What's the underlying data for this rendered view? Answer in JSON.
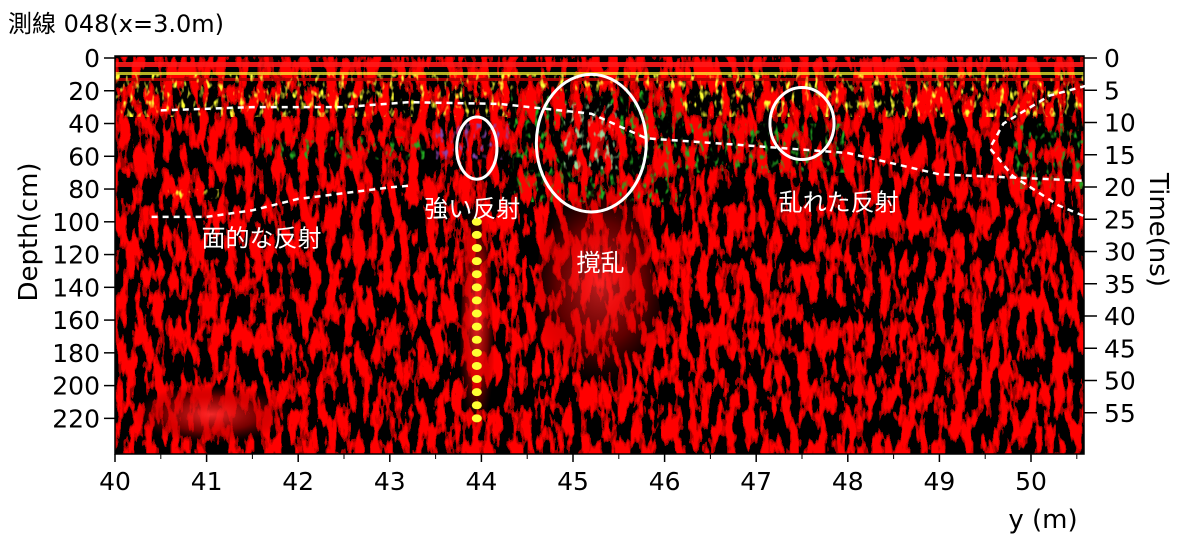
{
  "chart_data": {
    "type": "heatmap",
    "title": "測線 048(x=3.0m)",
    "xlabel": "y (m)",
    "ylabel": "Depth(cm)",
    "y2label": "Time(ns)",
    "xlim": [
      40,
      50.6
    ],
    "ylim": [
      0,
      235
    ],
    "y2lim": [
      0,
      59
    ],
    "x_ticks": [
      "40",
      "41",
      "42",
      "43",
      "44",
      "45",
      "46",
      "47",
      "48",
      "49",
      "50"
    ],
    "depth_ticks": [
      "0",
      "20",
      "40",
      "60",
      "80",
      "100",
      "120",
      "140",
      "160",
      "180",
      "200",
      "220"
    ],
    "time_ticks": [
      "0",
      "5",
      "10",
      "15",
      "20",
      "25",
      "30",
      "35",
      "40",
      "45",
      "50",
      "55"
    ],
    "colormap": [
      "#000000",
      "#5a0000",
      "#b00000",
      "#ff1a1a",
      "#ffaa00",
      "#ffff33",
      "#22aa22",
      "#2233cc",
      "#8844aa",
      "#ffffff"
    ],
    "annotations": [
      {
        "text": "面的な反射",
        "x": 41.6,
        "depth": 115
      },
      {
        "text": "強い反射",
        "x": 43.9,
        "depth": 97
      },
      {
        "text": "撹乱",
        "x": 45.3,
        "depth": 130
      },
      {
        "text": "乱れた反射",
        "x": 47.9,
        "depth": 93
      }
    ],
    "circles": [
      {
        "x": 43.95,
        "depth": 55,
        "rx": 0.22,
        "rdepth": 19
      },
      {
        "x": 45.2,
        "depth": 52,
        "rx": 0.6,
        "rdepth": 42
      },
      {
        "x": 47.5,
        "depth": 40,
        "rx": 0.35,
        "rdepth": 22
      }
    ],
    "dashed_lines": [
      [
        [
          40.5,
          32
        ],
        [
          41.5,
          30
        ],
        [
          42.5,
          30
        ],
        [
          43.2,
          27
        ],
        [
          44.2,
          28
        ],
        [
          45.2,
          34
        ],
        [
          45.8,
          49
        ],
        [
          46.8,
          53
        ],
        [
          48.0,
          58
        ],
        [
          49.0,
          71
        ],
        [
          50.6,
          75
        ]
      ],
      [
        [
          40.4,
          97
        ],
        [
          41.0,
          97
        ],
        [
          41.5,
          93
        ],
        [
          42.0,
          86
        ],
        [
          43.0,
          79
        ],
        [
          43.2,
          78
        ]
      ],
      [
        [
          50.6,
          17
        ],
        [
          50.2,
          23
        ],
        [
          49.7,
          40
        ],
        [
          49.55,
          55
        ],
        [
          49.8,
          72
        ],
        [
          50.3,
          90
        ],
        [
          50.6,
          97
        ]
      ]
    ]
  }
}
